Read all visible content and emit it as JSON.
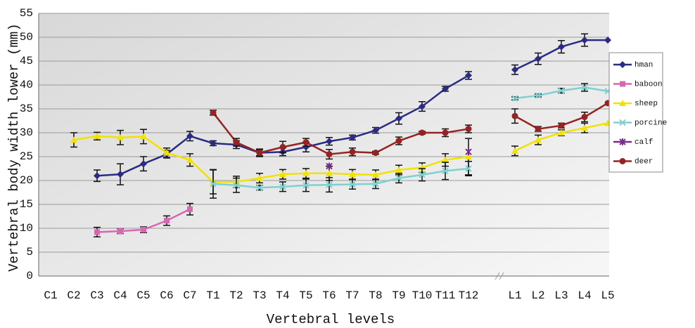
{
  "chart_data": {
    "type": "line",
    "y_label": "Vertebral body width lower (mm)",
    "x_label": "Vertebral levels",
    "categories": [
      "C1",
      "C2",
      "C3",
      "C4",
      "C5",
      "C6",
      "C7",
      "T1",
      "T2",
      "T3",
      "T4",
      "T5",
      "T6",
      "T7",
      "T8",
      "T9",
      "T10",
      "T11",
      "T12",
      null,
      "L1",
      "L2",
      "L3",
      "L4",
      "L5"
    ],
    "ylim": [
      0,
      55
    ],
    "yticks": [
      0,
      5,
      10,
      15,
      20,
      25,
      30,
      35,
      40,
      45,
      50,
      55
    ],
    "grid": true,
    "legend": "right",
    "series": [
      {
        "name": "hman",
        "color": "#2b2b85",
        "marker": "diamond",
        "values": [
          null,
          null,
          21,
          21.3,
          23.5,
          25.5,
          29.3,
          27.8,
          27.5,
          25.8,
          26,
          27,
          28.2,
          29,
          30.5,
          33,
          35.5,
          39.2,
          42,
          null,
          43.2,
          45.5,
          48,
          49.4,
          49.4
        ],
        "errors": [
          null,
          null,
          1.2,
          2.2,
          1.5,
          0.8,
          1,
          0.5,
          0.8,
          0.8,
          0.8,
          1,
          0.8,
          0.5,
          0.6,
          1.2,
          1,
          0.5,
          0.8,
          null,
          1,
          1.2,
          1.3,
          1.3,
          null
        ]
      },
      {
        "name": "baboon",
        "color": "#d966b3",
        "marker": "square",
        "values": [
          null,
          null,
          9.2,
          9.4,
          9.7,
          11.6,
          14,
          null,
          null,
          null,
          null,
          null,
          null,
          null,
          null,
          null,
          null,
          null,
          null,
          null,
          null,
          null,
          null,
          null,
          null
        ],
        "errors": [
          null,
          null,
          1,
          0.5,
          0.6,
          1,
          1.2,
          null,
          null,
          null,
          null,
          null,
          null,
          null,
          null,
          null,
          null,
          null,
          null,
          null,
          null,
          null,
          null,
          null,
          null
        ]
      },
      {
        "name": "sheep",
        "color": "#f2e200",
        "marker": "triangle",
        "values": [
          null,
          28.5,
          29.3,
          29,
          29.2,
          25.8,
          24.3,
          19.7,
          19.7,
          20.5,
          21.3,
          21.5,
          21.5,
          21.3,
          21.2,
          22.2,
          22.7,
          24.3,
          25,
          null,
          26.2,
          28.5,
          30,
          31,
          32
        ],
        "errors": [
          null,
          1.5,
          0.8,
          1.5,
          1.5,
          1,
          1.3,
          2.5,
          1.2,
          1,
          1,
          1,
          1.5,
          1,
          1,
          1,
          1,
          1.3,
          3.8,
          null,
          1,
          1,
          0.6,
          1,
          null
        ]
      },
      {
        "name": "porcine",
        "color": "#7fd0d0",
        "marker": "x",
        "values": [
          null,
          null,
          null,
          null,
          null,
          null,
          null,
          19.3,
          19,
          18.5,
          18.7,
          19,
          19.1,
          19.2,
          19.3,
          20.5,
          21.2,
          22,
          22.5,
          null,
          37.2,
          37.8,
          38.8,
          39.5,
          38.7
        ],
        "errors": [
          null,
          null,
          null,
          null,
          null,
          null,
          null,
          3,
          1.5,
          0.5,
          1,
          1.3,
          1.5,
          1,
          1,
          1,
          1.3,
          1.8,
          1.5,
          null,
          0.3,
          0.3,
          0.5,
          0.8,
          null
        ]
      },
      {
        "name": "calf",
        "color": "#7a2a8a",
        "marker": "star",
        "values": [
          null,
          null,
          null,
          null,
          null,
          null,
          null,
          null,
          null,
          null,
          null,
          null,
          23,
          null,
          null,
          null,
          null,
          null,
          26,
          null,
          null,
          null,
          null,
          null,
          null
        ]
      },
      {
        "name": "deer",
        "color": "#962323",
        "marker": "circle",
        "values": [
          null,
          null,
          null,
          null,
          null,
          null,
          null,
          34.2,
          28,
          25.8,
          27,
          28,
          25.5,
          26,
          25.8,
          28.3,
          30,
          30,
          30.8,
          null,
          33.5,
          30.8,
          31.5,
          33.3,
          36.2
        ],
        "errors": [
          null,
          null,
          null,
          null,
          null,
          null,
          null,
          0.5,
          0.8,
          0.6,
          1.2,
          0.8,
          1,
          0.8,
          0.3,
          0.8,
          0.3,
          0.8,
          0.8,
          null,
          1.5,
          0.5,
          0.5,
          1,
          null
        ]
      }
    ]
  }
}
